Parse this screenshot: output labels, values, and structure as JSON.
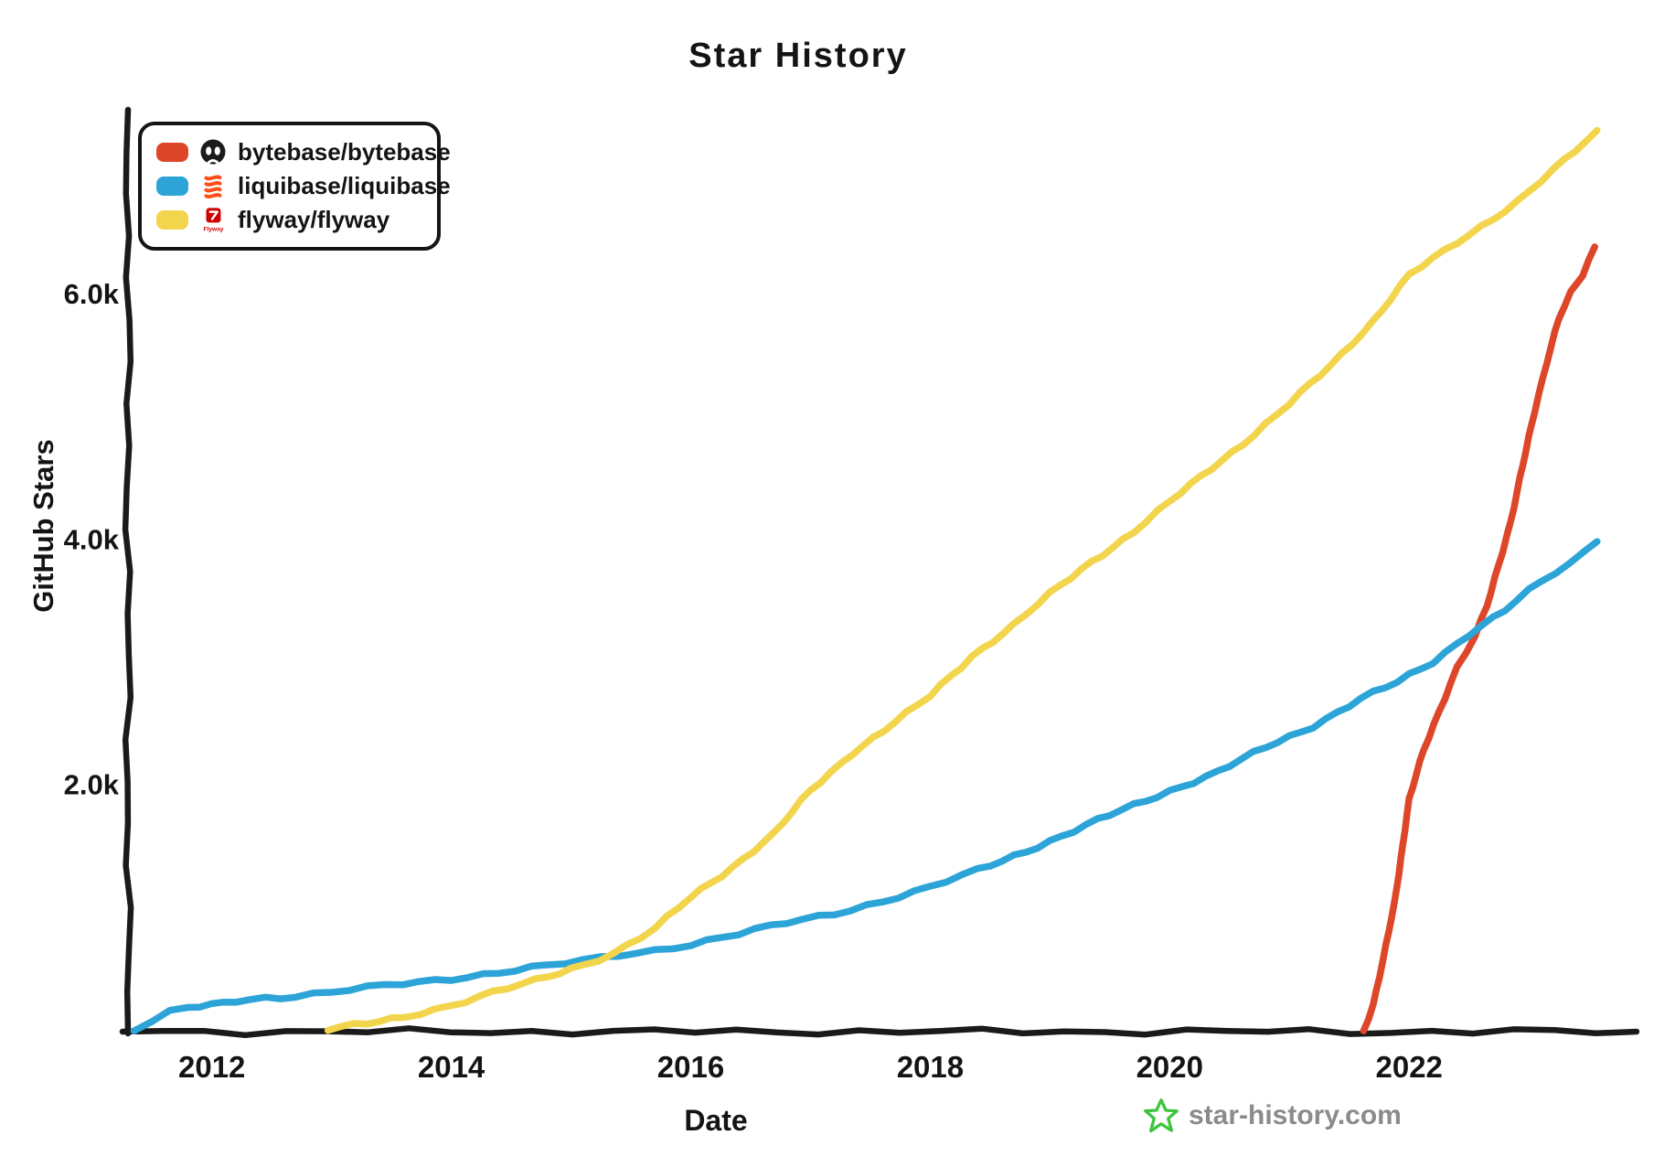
{
  "title": "Star History",
  "axes": {
    "y_label": "GitHub Stars",
    "x_label": "Date"
  },
  "legend": {
    "items": [
      {
        "repo": "bytebase/bytebase",
        "swatch_color": "#dd4629",
        "icon": "bytebase-logo"
      },
      {
        "repo": "liquibase/liquibase",
        "swatch_color": "#2da4d8",
        "icon": "liquibase-logo"
      },
      {
        "repo": "flyway/flyway",
        "swatch_color": "#f2d54c",
        "icon": "flyway-logo"
      }
    ]
  },
  "watermark": {
    "text": "star-history.com",
    "star_icon_color": "#3ec43e",
    "text_color": "#8b8b8b"
  },
  "chart_data": {
    "type": "line",
    "title": "Star History",
    "xlabel": "Date",
    "ylabel": "GitHub Stars",
    "x_range": [
      2011.3,
      2023.9
    ],
    "y_range": [
      0,
      7500
    ],
    "grid": false,
    "legend_position": "top-left",
    "axis_color": "#1a1a1a",
    "x_ticks": [
      {
        "value": 2012,
        "label": "2012"
      },
      {
        "value": 2014,
        "label": "2014"
      },
      {
        "value": 2016,
        "label": "2016"
      },
      {
        "value": 2018,
        "label": "2018"
      },
      {
        "value": 2020,
        "label": "2020"
      },
      {
        "value": 2022,
        "label": "2022"
      }
    ],
    "y_ticks": [
      {
        "value": 2000,
        "label": "2.0k"
      },
      {
        "value": 4000,
        "label": "4.0k"
      },
      {
        "value": 6000,
        "label": "6.0k"
      }
    ],
    "series": [
      {
        "name": "bytebase/bytebase",
        "color": "#dd4629",
        "points": [
          [
            2021.62,
            0
          ],
          [
            2021.7,
            200
          ],
          [
            2021.78,
            550
          ],
          [
            2021.88,
            1050
          ],
          [
            2022.0,
            1870
          ],
          [
            2022.12,
            2280
          ],
          [
            2022.25,
            2600
          ],
          [
            2022.4,
            2950
          ],
          [
            2022.55,
            3200
          ],
          [
            2022.65,
            3450
          ],
          [
            2022.75,
            3800
          ],
          [
            2022.85,
            4150
          ],
          [
            2022.95,
            4600
          ],
          [
            2023.05,
            5050
          ],
          [
            2023.15,
            5450
          ],
          [
            2023.25,
            5800
          ],
          [
            2023.35,
            6000
          ],
          [
            2023.45,
            6150
          ],
          [
            2023.55,
            6380
          ]
        ]
      },
      {
        "name": "liquibase/liquibase",
        "color": "#2da4d8",
        "points": [
          [
            2011.35,
            0
          ],
          [
            2011.5,
            70
          ],
          [
            2011.65,
            140
          ],
          [
            2011.8,
            175
          ],
          [
            2012.0,
            200
          ],
          [
            2012.2,
            240
          ],
          [
            2012.45,
            265
          ],
          [
            2012.7,
            275
          ],
          [
            2013.0,
            305
          ],
          [
            2013.3,
            340
          ],
          [
            2013.6,
            375
          ],
          [
            2014.0,
            420
          ],
          [
            2014.4,
            470
          ],
          [
            2014.8,
            520
          ],
          [
            2015.1,
            560
          ],
          [
            2015.4,
            610
          ],
          [
            2015.7,
            650
          ],
          [
            2016.0,
            700
          ],
          [
            2016.4,
            780
          ],
          [
            2016.8,
            870
          ],
          [
            2017.2,
            950
          ],
          [
            2017.6,
            1050
          ],
          [
            2018.0,
            1160
          ],
          [
            2018.4,
            1300
          ],
          [
            2018.8,
            1460
          ],
          [
            2019.2,
            1620
          ],
          [
            2019.6,
            1790
          ],
          [
            2020.0,
            1950
          ],
          [
            2020.4,
            2100
          ],
          [
            2020.8,
            2300
          ],
          [
            2021.2,
            2480
          ],
          [
            2021.6,
            2700
          ],
          [
            2021.9,
            2830
          ],
          [
            2022.2,
            3000
          ],
          [
            2022.5,
            3230
          ],
          [
            2022.8,
            3420
          ],
          [
            2023.1,
            3650
          ],
          [
            2023.35,
            3800
          ],
          [
            2023.57,
            4000
          ]
        ]
      },
      {
        "name": "flyway/flyway",
        "color": "#f2d54c",
        "points": [
          [
            2012.97,
            0
          ],
          [
            2013.3,
            50
          ],
          [
            2013.6,
            110
          ],
          [
            2014.0,
            200
          ],
          [
            2014.35,
            300
          ],
          [
            2014.7,
            400
          ],
          [
            2015.0,
            500
          ],
          [
            2015.35,
            620
          ],
          [
            2015.7,
            820
          ],
          [
            2016.0,
            1080
          ],
          [
            2016.35,
            1330
          ],
          [
            2016.7,
            1600
          ],
          [
            2017.0,
            1950
          ],
          [
            2017.35,
            2260
          ],
          [
            2017.7,
            2500
          ],
          [
            2018.0,
            2720
          ],
          [
            2018.35,
            3050
          ],
          [
            2018.7,
            3300
          ],
          [
            2019.0,
            3550
          ],
          [
            2019.35,
            3820
          ],
          [
            2019.7,
            4060
          ],
          [
            2020.0,
            4300
          ],
          [
            2020.35,
            4580
          ],
          [
            2020.7,
            4850
          ],
          [
            2021.0,
            5100
          ],
          [
            2021.35,
            5420
          ],
          [
            2021.7,
            5780
          ],
          [
            2022.0,
            6150
          ],
          [
            2022.3,
            6350
          ],
          [
            2022.6,
            6550
          ],
          [
            2022.9,
            6750
          ],
          [
            2023.2,
            7000
          ],
          [
            2023.57,
            7320
          ]
        ]
      }
    ]
  }
}
